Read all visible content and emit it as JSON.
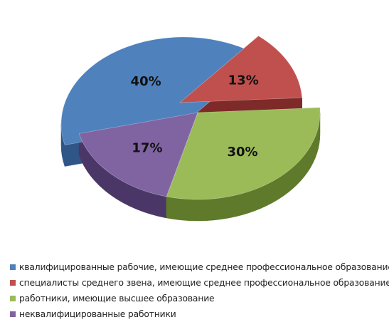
{
  "chart_data": {
    "type": "pie",
    "title": "",
    "slices": [
      {
        "label": "квалифицированные рабочие, имеющие среднее профессиональное образование",
        "value": 40,
        "value_label": "40%",
        "color": "#4f81bd",
        "dark": "#2f5687"
      },
      {
        "label": "специалисты среднего звена, имеющие среднее профессиональное образование",
        "value": 13,
        "value_label": "13%",
        "color": "#c0504d",
        "dark": "#7d2a28"
      },
      {
        "label": "работники, имеющие высшее образование",
        "value": 30,
        "value_label": "30%",
        "color": "#9bbb59",
        "dark": "#5e7a2a"
      },
      {
        "label": "неквалифицированные работники",
        "value": 17,
        "value_label": "17%",
        "color": "#8064a2",
        "dark": "#4b3767"
      }
    ],
    "legend_position": "bottom",
    "style": "3d-exploded"
  }
}
